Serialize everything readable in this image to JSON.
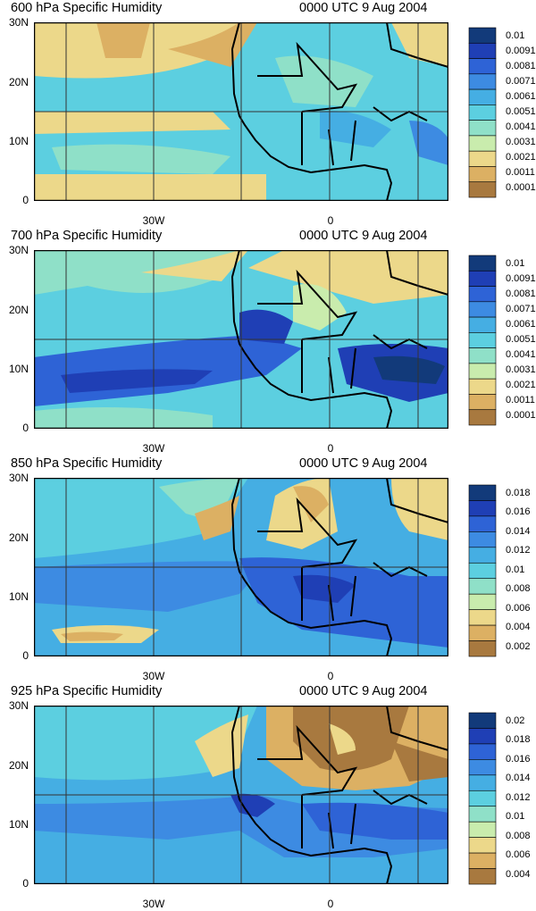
{
  "panels": [
    {
      "level": "600 hPa Specific Humidity",
      "time": "0000 UTC 9 Aug 2004",
      "colorbar": [
        "0.01",
        "0.0091",
        "0.0081",
        "0.0071",
        "0.0061",
        "0.0051",
        "0.0041",
        "0.0031",
        "0.0021",
        "0.0011",
        "0.0001"
      ]
    },
    {
      "level": "700 hPa Specific Humidity",
      "time": "0000 UTC 9 Aug 2004",
      "colorbar": [
        "0.01",
        "0.0091",
        "0.0081",
        "0.0071",
        "0.0061",
        "0.0051",
        "0.0041",
        "0.0031",
        "0.0021",
        "0.0011",
        "0.0001"
      ]
    },
    {
      "level": "850 hPa Specific Humidity",
      "time": "0000 UTC 9 Aug 2004",
      "colorbar": [
        "0.018",
        "0.016",
        "0.014",
        "0.012",
        "0.01",
        "0.008",
        "0.006",
        "0.004",
        "0.002"
      ]
    },
    {
      "level": "925 hPa Specific Humidity",
      "time": "0000 UTC 9 Aug 2004",
      "colorbar": [
        "0.02",
        "0.018",
        "0.016",
        "0.014",
        "0.012",
        "0.01",
        "0.008",
        "0.006",
        "0.004"
      ]
    }
  ],
  "lat_labels": [
    "30N",
    "20N",
    "10N",
    "0"
  ],
  "lon_labels": [
    "30W",
    "0"
  ],
  "palette": [
    "#123a7a",
    "#1f3fb5",
    "#2e63d6",
    "#3d8be2",
    "#45aee3",
    "#5ccfe0",
    "#8fe0c8",
    "#c9ecad",
    "#ecd88a",
    "#dcb063",
    "#a8793f"
  ]
}
